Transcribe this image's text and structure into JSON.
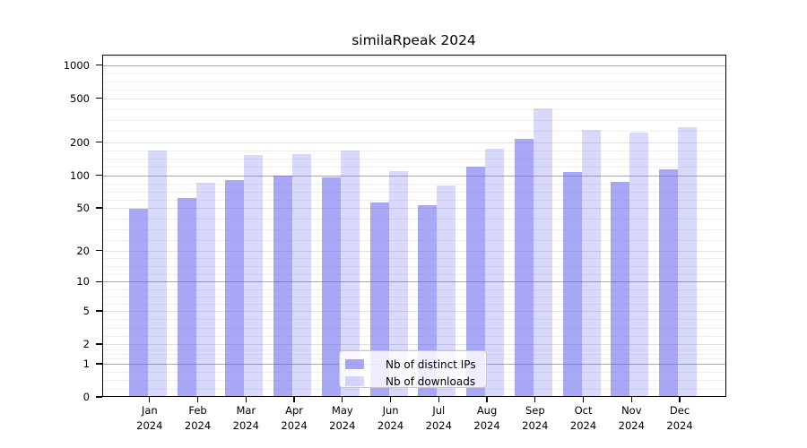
{
  "chart_data": {
    "type": "bar",
    "title": "similaRpeak 2024",
    "categories": [
      "Jan",
      "Feb",
      "Mar",
      "Apr",
      "May",
      "Jun",
      "Jul",
      "Aug",
      "Sep",
      "Oct",
      "Nov",
      "Dec"
    ],
    "year_label": "2024",
    "series": [
      {
        "name": "Nb of distinct IPs",
        "color": "rgba(97,97,240,0.55)",
        "values": [
          49,
          62,
          91,
          100,
          95,
          56,
          53,
          120,
          215,
          106,
          87,
          112
        ]
      },
      {
        "name": "Nb of downloads",
        "color": "rgba(97,97,240,0.24)",
        "values": [
          168,
          85,
          152,
          155,
          168,
          108,
          81,
          173,
          405,
          260,
          246,
          275
        ]
      }
    ],
    "yscale": "log1p",
    "yticks": [
      0,
      1,
      2,
      5,
      10,
      20,
      50,
      100,
      200,
      500,
      1000
    ],
    "ylim": [
      0,
      1240
    ],
    "grid": {
      "on": true,
      "major_color": "#a8a8a8",
      "tick_color": "#e0e0e0",
      "minor_color": "#efefef"
    },
    "axis_color": "#000000",
    "legend_position": "bottom-center"
  }
}
